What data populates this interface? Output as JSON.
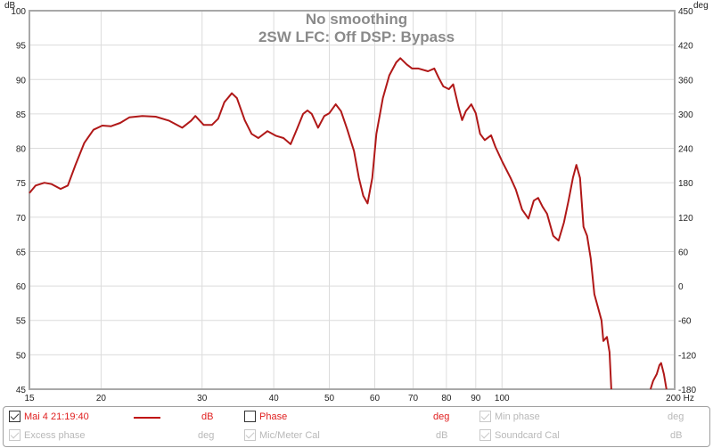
{
  "chart_data": {
    "type": "line",
    "title": "No smoothing",
    "subtitle": "2SW LFC: Off  DSP: Bypass",
    "xlabel": "Hz",
    "ylabel": "dB",
    "y2label": "deg",
    "xscale": "log",
    "xlim": [
      15,
      200
    ],
    "ylim": [
      45,
      100
    ],
    "y2lim": [
      -180,
      450
    ],
    "xticks": [
      15,
      20,
      30,
      40,
      50,
      60,
      70,
      80,
      90,
      100,
      200
    ],
    "xtick_labels": [
      "15",
      "20",
      "30",
      "40",
      "50",
      "60",
      "70",
      "80",
      "90",
      "100",
      "200 Hz"
    ],
    "yticks": [
      100,
      95,
      90,
      85,
      80,
      75,
      70,
      65,
      60,
      55,
      50,
      45
    ],
    "y2tick_labels": [
      "450",
      "420",
      "360",
      "300",
      "240",
      "180",
      "120",
      "60",
      "0",
      "-60",
      "-120",
      "-180"
    ],
    "grid": true,
    "series": [
      {
        "name": "Mai 4 21:19:40",
        "color": "#b01818",
        "x": [
          15.0,
          15.38,
          15.93,
          16.4,
          17.0,
          17.5,
          18.05,
          18.7,
          19.4,
          20.1,
          20.8,
          21.6,
          22.4,
          23.6,
          24.9,
          26.3,
          27.7,
          28.7,
          29.2,
          30.2,
          31.2,
          32.0,
          32.8,
          33.8,
          34.5,
          35.6,
          36.6,
          37.6,
          39.0,
          40.4,
          41.6,
          42.8,
          43.9,
          45.0,
          45.8,
          46.6,
          47.8,
          49.0,
          50.0,
          51.3,
          52.4,
          53.7,
          55.2,
          56.3,
          57.3,
          58.3,
          59.4,
          60.4,
          62.0,
          63.6,
          65.4,
          66.5,
          68.2,
          69.7,
          71.5,
          74.3,
          76.2,
          77.6,
          79.0,
          80.8,
          82.2,
          84.0,
          85.2,
          86.5,
          88.4,
          90.0,
          91.6,
          93.3,
          95.7,
          97.4,
          100.2,
          103.5,
          105.7,
          108.4,
          111.2,
          113.6,
          115.6,
          117.7,
          119.8,
          122.8,
          125.5,
          128.2,
          130.6,
          132.9,
          134.8,
          136.8,
          138.7,
          140.7,
          142.8,
          144.9,
          147.0,
          149.1,
          150.2,
          152.4,
          154.0,
          155.1,
          null,
          181.5,
          183.4,
          186.1,
          188.1,
          189.4,
          191.5,
          193.5
        ],
        "y": [
          73.5,
          74.6,
          75.0,
          74.8,
          74.1,
          74.6,
          77.6,
          80.8,
          82.7,
          83.3,
          83.2,
          83.7,
          84.5,
          84.7,
          84.6,
          84.0,
          83.0,
          84.0,
          84.7,
          83.4,
          83.4,
          84.3,
          86.7,
          88.0,
          87.3,
          84.1,
          82.1,
          81.5,
          82.5,
          81.8,
          81.5,
          80.6,
          82.8,
          85.0,
          85.5,
          85.0,
          83.0,
          84.7,
          85.1,
          86.4,
          85.4,
          82.8,
          79.6,
          75.7,
          73.1,
          72.0,
          75.7,
          82.1,
          87.3,
          90.6,
          92.5,
          93.1,
          92.2,
          91.6,
          91.6,
          91.2,
          91.6,
          90.2,
          89.0,
          88.6,
          89.3,
          86.0,
          84.1,
          85.4,
          86.4,
          85.1,
          82.1,
          81.2,
          81.9,
          80.2,
          78.0,
          75.7,
          74.0,
          71.1,
          69.8,
          72.4,
          72.8,
          71.5,
          70.5,
          67.3,
          66.6,
          69.2,
          72.4,
          75.7,
          77.6,
          75.7,
          68.6,
          67.3,
          64.0,
          58.8,
          56.9,
          55.0,
          52.0,
          52.6,
          50.4,
          45.0,
          null,
          45.0,
          46.2,
          47.2,
          48.5,
          48.8,
          47.2,
          45.0
        ]
      }
    ]
  },
  "legend": {
    "row1": [
      {
        "label": "Mai 4 21:19:40",
        "checked": true,
        "unit": "dB"
      },
      {
        "label": "Phase",
        "checked": false,
        "unit": "deg"
      },
      {
        "label": "Min phase",
        "checked": true,
        "unit": "deg"
      }
    ],
    "row2": [
      {
        "label": "Excess phase",
        "checked": true,
        "unit": "deg"
      },
      {
        "label": "Mic/Meter Cal",
        "checked": true,
        "unit": "dB"
      },
      {
        "label": "Soundcard Cal",
        "checked": true,
        "unit": "dB"
      }
    ]
  }
}
